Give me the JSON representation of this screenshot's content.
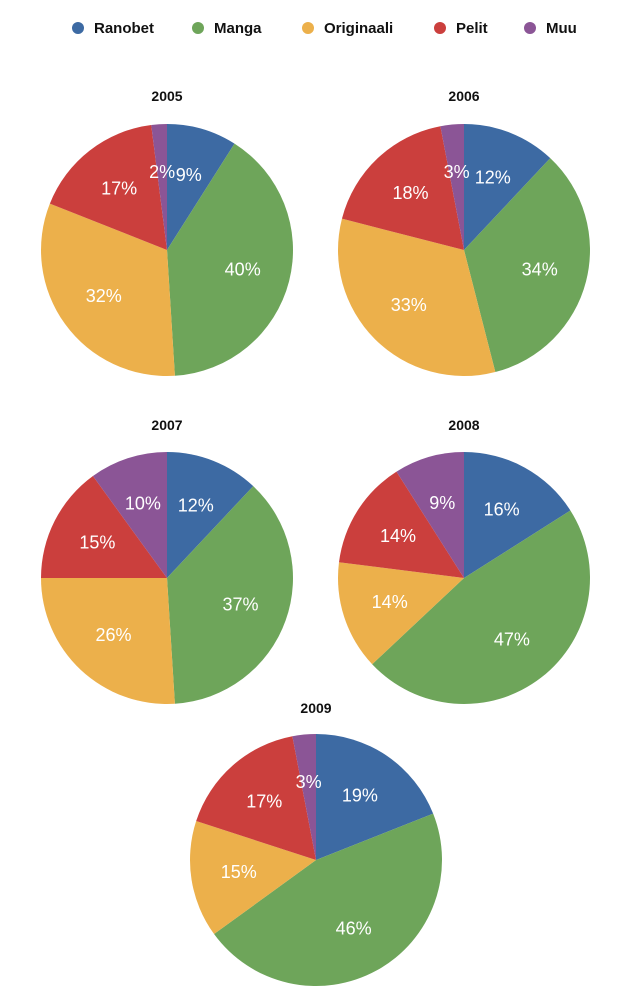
{
  "chart_data": {
    "type": "pie",
    "legend": {
      "placement": "top",
      "entries": [
        {
          "name": "Ranobet",
          "color": "#3d6aa3"
        },
        {
          "name": "Manga",
          "color": "#6ea55a"
        },
        {
          "name": "Originaali",
          "color": "#ecb04b"
        },
        {
          "name": "Pelit",
          "color": "#cb3f3d"
        },
        {
          "name": "Muu",
          "color": "#8b5596"
        }
      ]
    },
    "pies": [
      {
        "title": "2005",
        "values": [
          9,
          40,
          32,
          17,
          2
        ],
        "labels": [
          "9%",
          "40%",
          "32%",
          "17%",
          "2%"
        ]
      },
      {
        "title": "2006",
        "values": [
          12,
          34,
          33,
          18,
          3
        ],
        "labels": [
          "12%",
          "34%",
          "33%",
          "18%",
          "3%"
        ]
      },
      {
        "title": "2007",
        "values": [
          12,
          37,
          26,
          15,
          10
        ],
        "labels": [
          "12%",
          "37%",
          "26%",
          "15%",
          "10%"
        ]
      },
      {
        "title": "2008",
        "values": [
          16,
          47,
          14,
          14,
          9
        ],
        "labels": [
          "16%",
          "47%",
          "14%",
          "14%",
          "9%"
        ]
      },
      {
        "title": "2009",
        "values": [
          19,
          46,
          15,
          17,
          3
        ],
        "labels": [
          "19%",
          "46%",
          "15%",
          "17%",
          "3%"
        ]
      }
    ]
  }
}
